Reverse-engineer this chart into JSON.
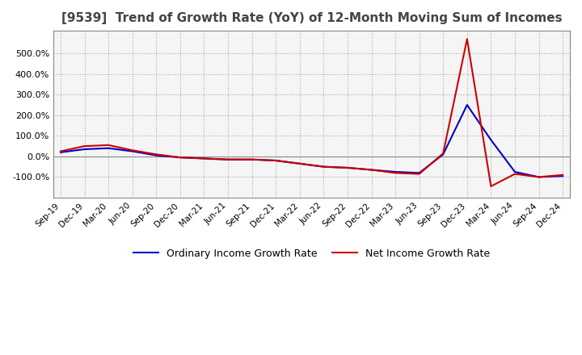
{
  "title": "[9539]  Trend of Growth Rate (YoY) of 12-Month Moving Sum of Incomes",
  "title_fontsize": 11,
  "title_color": "#444444",
  "background_color": "#ffffff",
  "plot_bg_color": "#f5f5f5",
  "grid_color": "#aaaaaa",
  "legend_labels": [
    "Ordinary Income Growth Rate",
    "Net Income Growth Rate"
  ],
  "line_colors": [
    "#0000cc",
    "#cc0000"
  ],
  "line_width": 1.5,
  "x_labels": [
    "Sep-19",
    "Dec-19",
    "Mar-20",
    "Jun-20",
    "Sep-20",
    "Dec-20",
    "Mar-21",
    "Jun-21",
    "Sep-21",
    "Dec-21",
    "Mar-22",
    "Jun-22",
    "Sep-22",
    "Dec-22",
    "Mar-23",
    "Jun-23",
    "Sep-23",
    "Dec-23",
    "Mar-24",
    "Jun-24",
    "Sep-24",
    "Dec-24"
  ],
  "ylim": [
    -200,
    610
  ],
  "yticks": [
    -100,
    0,
    100,
    200,
    300,
    400,
    500
  ],
  "ordinary_income": [
    20,
    35,
    40,
    25,
    5,
    -5,
    -10,
    -15,
    -15,
    -20,
    -35,
    -50,
    -55,
    -65,
    -75,
    -80,
    10,
    250,
    80,
    -75,
    -100,
    -95
  ],
  "net_income": [
    25,
    50,
    55,
    30,
    10,
    -5,
    -10,
    -15,
    -15,
    -20,
    -35,
    -50,
    -55,
    -65,
    -80,
    -85,
    15,
    570,
    -145,
    -85,
    -100,
    -90
  ]
}
